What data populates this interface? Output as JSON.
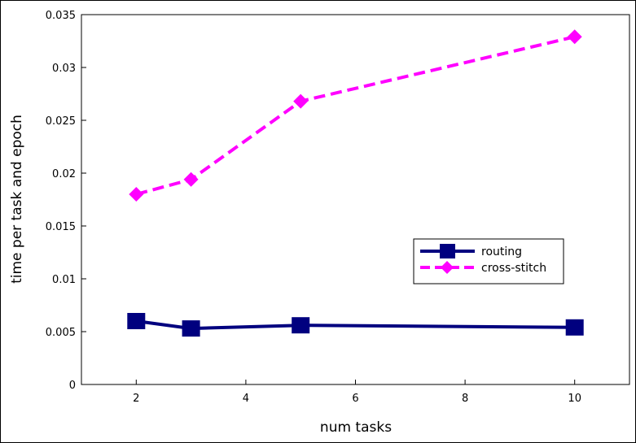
{
  "chart_data": {
    "type": "line",
    "title": "",
    "xlabel": "num tasks",
    "ylabel": "time per task and epoch",
    "xlim": [
      1,
      11
    ],
    "ylim": [
      0,
      0.035
    ],
    "x_ticks": [
      2,
      4,
      6,
      8,
      10
    ],
    "x_tick_labels": [
      "2",
      "4",
      "6",
      "8",
      "10"
    ],
    "y_ticks": [
      0,
      0.005,
      0.01,
      0.015,
      0.02,
      0.025,
      0.03,
      0.035
    ],
    "y_tick_labels": [
      "0",
      "0.005",
      "0.01",
      "0.015",
      "0.02",
      "0.025",
      "0.03",
      "0.035"
    ],
    "grid": false,
    "legend_position": "right",
    "series": [
      {
        "name": "routing",
        "color": "#00007f",
        "line_style": "solid",
        "marker": "square",
        "x": [
          2,
          3,
          5,
          10
        ],
        "values": [
          0.006,
          0.0053,
          0.0056,
          0.0054
        ]
      },
      {
        "name": "cross-stitch",
        "color": "#ff00ff",
        "line_style": "dashed",
        "marker": "diamond",
        "x": [
          2,
          3,
          5,
          10
        ],
        "values": [
          0.018,
          0.0194,
          0.0268,
          0.0329
        ]
      }
    ]
  }
}
